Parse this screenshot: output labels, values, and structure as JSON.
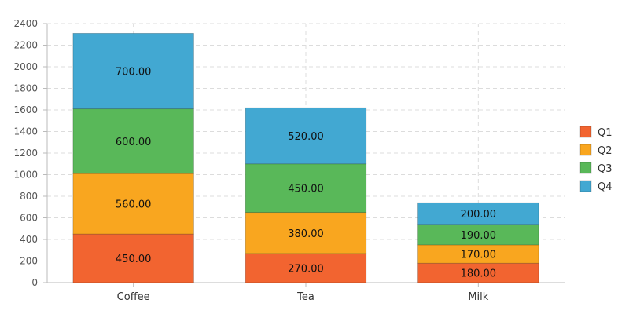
{
  "chart_data": {
    "type": "bar",
    "stacked": true,
    "categories": [
      "Coffee",
      "Tea",
      "Milk"
    ],
    "series": [
      {
        "name": "Q1",
        "values": [
          450,
          270,
          180
        ],
        "color": "#f26430"
      },
      {
        "name": "Q2",
        "values": [
          560,
          380,
          170
        ],
        "color": "#f9a61f"
      },
      {
        "name": "Q3",
        "values": [
          600,
          450,
          190
        ],
        "color": "#59b859"
      },
      {
        "name": "Q4",
        "values": [
          700,
          520,
          200
        ],
        "color": "#42a8d2"
      }
    ],
    "title": "",
    "xlabel": "",
    "ylabel": "",
    "ylim": [
      0,
      2400
    ],
    "yticks": [
      0,
      200,
      400,
      600,
      800,
      1000,
      1200,
      1400,
      1600,
      1800,
      2000,
      2200,
      2400
    ],
    "grid": true,
    "legend": "right",
    "data_label_format": "fixed-2"
  }
}
